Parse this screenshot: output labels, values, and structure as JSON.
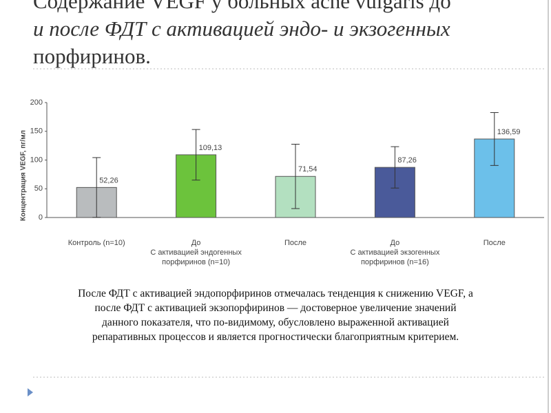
{
  "title_lines": [
    "Содержание VEGF у больных acne vulgaris до",
    "и после ФДТ с активацией эндо- и экзогенных",
    "порфиринов."
  ],
  "chart_data": {
    "type": "bar",
    "y_label": "Концентрация VEGF, пг/мл",
    "categories": [
      "Контроль (n=10)",
      "До\nС активацией эндогенных\nпорфиринов (n=10)",
      "После",
      "До\nС активацией экзогенных\nпорфиринов (n=16)",
      "После"
    ],
    "values": [
      52.26,
      109.13,
      71.54,
      87.26,
      136.59
    ],
    "value_labels": [
      "52,26",
      "109,13",
      "71,54",
      "87,26",
      "136,59"
    ],
    "errors": [
      52,
      44,
      56,
      36,
      46
    ],
    "colors": [
      "#b9bcbe",
      "#6cc33c",
      "#b3e0c0",
      "#4a5a9a",
      "#6cc0ea"
    ],
    "ylim": [
      0,
      200
    ],
    "yticks": [
      0,
      50,
      100,
      150,
      200
    ],
    "grid": false
  },
  "caption": "После ФДТ с активацией эндопорфиринов отмечалась тенденция к снижению VEGF, а после ФДТ с активацией экзопорфиринов — достоверное увеличение значений данного показателя, что по-видимому, обусловлено выраженной активацией репаративных процессов и является прогностически благоприятным критерием."
}
